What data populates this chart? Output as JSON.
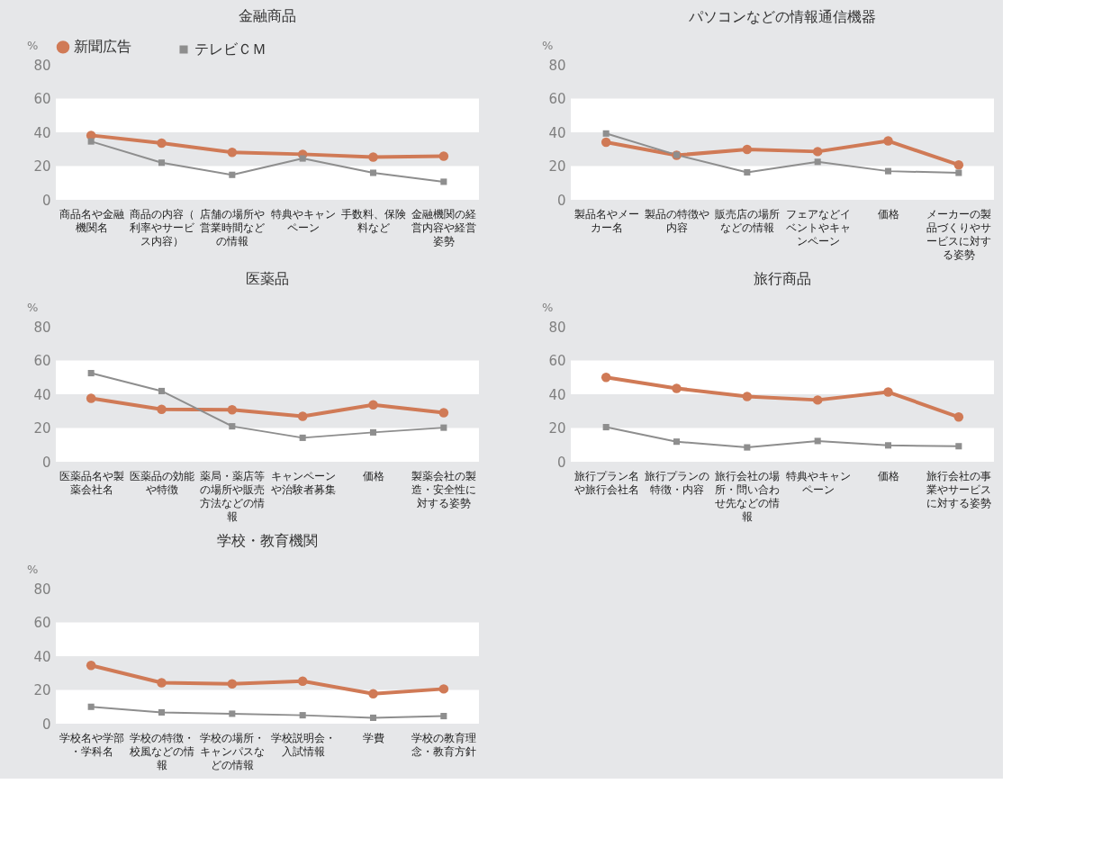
{
  "chart_data": [
    {
      "type": "line",
      "title": "金融商品",
      "ylabel": "%",
      "categories": [
        "商品名や金融機関名",
        "商品の内容（利率やサービス内容）",
        "店舗の場所や営業時間などの情報",
        "特典やキャンペーン",
        "手数料、保険料など",
        "金融機関の経営内容や経営姿勢"
      ],
      "ylim": [
        0,
        80
      ],
      "yticks": [
        0,
        20,
        40,
        60,
        80
      ],
      "legend": "top",
      "bands": [
        {
          "axis": "y",
          "from": 0,
          "to": 20,
          "color": "#ffffff"
        },
        {
          "axis": "y",
          "from": 40,
          "to": 60,
          "color": "#ffffff"
        }
      ],
      "series": [
        {
          "name": "新聞広告",
          "color": "#d07a56",
          "marker": "circle",
          "values": [
            38.2,
            33.6,
            28.1,
            27.0,
            25.3,
            25.9
          ]
        },
        {
          "name": "テレビＣＭ",
          "color": "#8e8e8e",
          "marker": "square",
          "values": [
            34.6,
            22.0,
            14.8,
            24.5,
            16.0,
            10.7
          ]
        }
      ]
    },
    {
      "type": "line",
      "title": "パソコンなどの情報通信機器",
      "ylabel": "%",
      "categories": [
        "製品名やメーカー名",
        "製品の特徴や内容",
        "販売店の場所などの情報",
        "フェアなどイベントやキャンペーン",
        "価格",
        "メーカーの製品づくりやサービスに対する姿勢"
      ],
      "ylim": [
        0,
        80
      ],
      "yticks": [
        0,
        20,
        40,
        60,
        80
      ],
      "bands": [
        {
          "axis": "y",
          "from": 0,
          "to": 20,
          "color": "#ffffff"
        },
        {
          "axis": "y",
          "from": 40,
          "to": 60,
          "color": "#ffffff"
        }
      ],
      "series": [
        {
          "color": "#d07a56",
          "marker": "circle",
          "values": [
            34.1,
            26.4,
            29.9,
            28.6,
            34.9,
            20.7
          ]
        },
        {
          "color": "#8e8e8e",
          "marker": "square",
          "values": [
            39.3,
            26.6,
            16.3,
            22.5,
            17.0,
            16.0
          ]
        }
      ]
    },
    {
      "type": "line",
      "title": "医薬品",
      "ylabel": "%",
      "categories": [
        "医薬品名や製薬会社名",
        "医薬品の効能や特徴",
        "薬局・薬店等の場所や販売方法などの情報",
        "キャンペーンや治験者募集",
        "価格",
        "製薬会社の製造・安全性に対する姿勢"
      ],
      "ylim": [
        0,
        80
      ],
      "yticks": [
        0,
        20,
        40,
        60,
        80
      ],
      "bands": [
        {
          "axis": "y",
          "from": 0,
          "to": 20,
          "color": "#ffffff"
        },
        {
          "axis": "y",
          "from": 40,
          "to": 60,
          "color": "#ffffff"
        }
      ],
      "series": [
        {
          "color": "#d07a56",
          "marker": "circle",
          "values": [
            37.6,
            31.1,
            30.8,
            26.9,
            33.7,
            29.1
          ]
        },
        {
          "color": "#8e8e8e",
          "marker": "square",
          "values": [
            52.5,
            41.9,
            21.0,
            14.2,
            17.4,
            20.2
          ]
        }
      ]
    },
    {
      "type": "line",
      "title": "旅行商品",
      "ylabel": "%",
      "categories": [
        "旅行プラン名や旅行会社名",
        "旅行プランの特徴・内容",
        "旅行会社の場所・問い合わせ先などの情報",
        "特典やキャンペーン",
        "価格",
        "旅行会社の事業やサービスに対する姿勢"
      ],
      "ylim": [
        0,
        80
      ],
      "yticks": [
        0,
        20,
        40,
        60,
        80
      ],
      "bands": [
        {
          "axis": "y",
          "from": 0,
          "to": 20,
          "color": "#ffffff"
        },
        {
          "axis": "y",
          "from": 40,
          "to": 60,
          "color": "#ffffff"
        }
      ],
      "series": [
        {
          "color": "#d07a56",
          "marker": "circle",
          "values": [
            50.0,
            43.5,
            38.7,
            36.6,
            41.3,
            26.5
          ]
        },
        {
          "color": "#8e8e8e",
          "marker": "square",
          "values": [
            20.5,
            11.9,
            8.5,
            12.3,
            9.7,
            9.2
          ]
        }
      ]
    },
    {
      "type": "line",
      "title": "学校・教育機関",
      "ylabel": "%",
      "categories": [
        "学校名や学部・学科名",
        "学校の特徴・校風などの情報",
        "学校の場所・キャンパスなどの情報",
        "学校説明会・入試情報",
        "学費",
        "学校の教育理念・教育方針"
      ],
      "ylim": [
        0,
        80
      ],
      "yticks": [
        0,
        20,
        40,
        60,
        80
      ],
      "bands": [
        {
          "axis": "y",
          "from": 0,
          "to": 20,
          "color": "#ffffff"
        },
        {
          "axis": "y",
          "from": 40,
          "to": 60,
          "color": "#ffffff"
        }
      ],
      "series": [
        {
          "color": "#d07a56",
          "marker": "circle",
          "values": [
            34.5,
            24.3,
            23.6,
            25.2,
            17.7,
            20.6
          ]
        },
        {
          "color": "#8e8e8e",
          "marker": "square",
          "values": [
            10.0,
            6.7,
            5.9,
            5.0,
            3.5,
            4.5
          ]
        }
      ]
    }
  ]
}
